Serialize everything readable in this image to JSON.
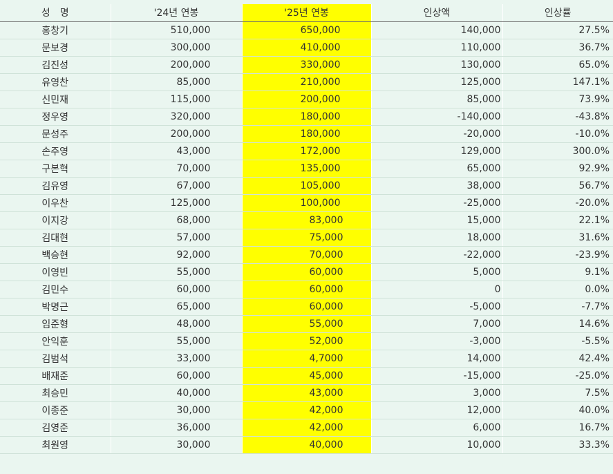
{
  "headers": [
    "성　명",
    "'24년 연봉",
    "'25년 연봉",
    "인상액",
    "인상률"
  ],
  "rows": [
    [
      "홍창기",
      "510,000",
      "650,000",
      "140,000",
      "27.5%"
    ],
    [
      "문보경",
      "300,000",
      "410,000",
      "110,000",
      "36.7%"
    ],
    [
      "김진성",
      "200,000",
      "330,000",
      "130,000",
      "65.0%"
    ],
    [
      "유영찬",
      "85,000",
      "210,000",
      "125,000",
      "147.1%"
    ],
    [
      "신민재",
      "115,000",
      "200,000",
      "85,000",
      "73.9%"
    ],
    [
      "정우영",
      "320,000",
      "180,000",
      "-140,000",
      "-43.8%"
    ],
    [
      "문성주",
      "200,000",
      "180,000",
      "-20,000",
      "-10.0%"
    ],
    [
      "손주영",
      "43,000",
      "172,000",
      "129,000",
      "300.0%"
    ],
    [
      "구본혁",
      "70,000",
      "135,000",
      "65,000",
      "92.9%"
    ],
    [
      "김유영",
      "67,000",
      "105,000",
      "38,000",
      "56.7%"
    ],
    [
      "이우찬",
      "125,000",
      "100,000",
      "-25,000",
      "-20.0%"
    ],
    [
      "이지강",
      "68,000",
      "83,000",
      "15,000",
      "22.1%"
    ],
    [
      "김대현",
      "57,000",
      "75,000",
      "18,000",
      "31.6%"
    ],
    [
      "백승현",
      "92,000",
      "70,000",
      "-22,000",
      "-23.9%"
    ],
    [
      "이영빈",
      "55,000",
      "60,000",
      "5,000",
      "9.1%"
    ],
    [
      "김민수",
      "60,000",
      "60,000",
      "0",
      "0.0%"
    ],
    [
      "박명근",
      "65,000",
      "60,000",
      "-5,000",
      "-7.7%"
    ],
    [
      "임준형",
      "48,000",
      "55,000",
      "7,000",
      "14.6%"
    ],
    [
      "안익훈",
      "55,000",
      "52,000",
      "-3,000",
      "-5.5%"
    ],
    [
      "김범석",
      "33,000",
      "4,7000",
      "14,000",
      "42.4%"
    ],
    [
      "배재준",
      "60,000",
      "45,000",
      "-15,000",
      "-25.0%"
    ],
    [
      "최승민",
      "40,000",
      "43,000",
      "3,000",
      "7.5%"
    ],
    [
      "이종준",
      "30,000",
      "42,000",
      "12,000",
      "40.0%"
    ],
    [
      "김영준",
      "36,000",
      "42,000",
      "6,000",
      "16.7%"
    ],
    [
      "최원영",
      "30,000",
      "40,000",
      "10,000",
      "33.3%"
    ]
  ],
  "highlight_color": "#ffff00"
}
